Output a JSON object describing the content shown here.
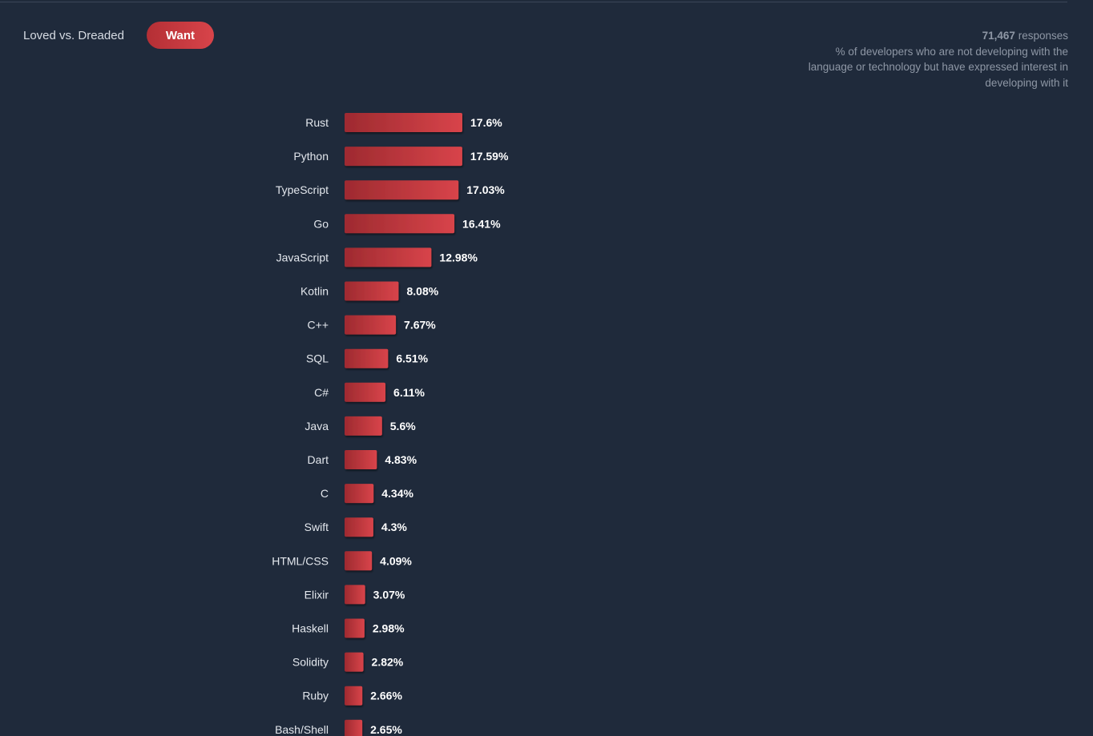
{
  "controls": {
    "loved_vs_dreaded_label": "Loved vs. Dreaded",
    "want_label": "Want"
  },
  "meta": {
    "response_count": "71,467",
    "response_suffix": "responses",
    "description": "% of developers who are not developing with the language or technology but have expressed interest in developing with it"
  },
  "colors": {
    "background": "#1f2a3b",
    "bar_dark": "#9e2a30",
    "bar_light": "#d8444a"
  },
  "chart_data": {
    "type": "bar",
    "orientation": "horizontal",
    "categories": [
      "Rust",
      "Python",
      "TypeScript",
      "Go",
      "JavaScript",
      "Kotlin",
      "C++",
      "SQL",
      "C#",
      "Java",
      "Dart",
      "C",
      "Swift",
      "HTML/CSS",
      "Elixir",
      "Haskell",
      "Solidity",
      "Ruby",
      "Bash/Shell"
    ],
    "values": [
      17.6,
      17.59,
      17.03,
      16.41,
      12.98,
      8.08,
      7.67,
      6.51,
      6.11,
      5.6,
      4.83,
      4.34,
      4.3,
      4.09,
      3.07,
      2.98,
      2.82,
      2.66,
      2.65
    ],
    "value_labels": [
      "17.6%",
      "17.59%",
      "17.03%",
      "16.41%",
      "12.98%",
      "8.08%",
      "7.67%",
      "6.51%",
      "6.11%",
      "5.6%",
      "4.83%",
      "4.34%",
      "4.3%",
      "4.09%",
      "3.07%",
      "2.98%",
      "2.82%",
      "2.66%",
      "2.65%"
    ],
    "unit": "%",
    "xlim": [
      0,
      17.6
    ],
    "grid": false,
    "legend": "none",
    "title": "",
    "xlabel": "",
    "ylabel": ""
  }
}
